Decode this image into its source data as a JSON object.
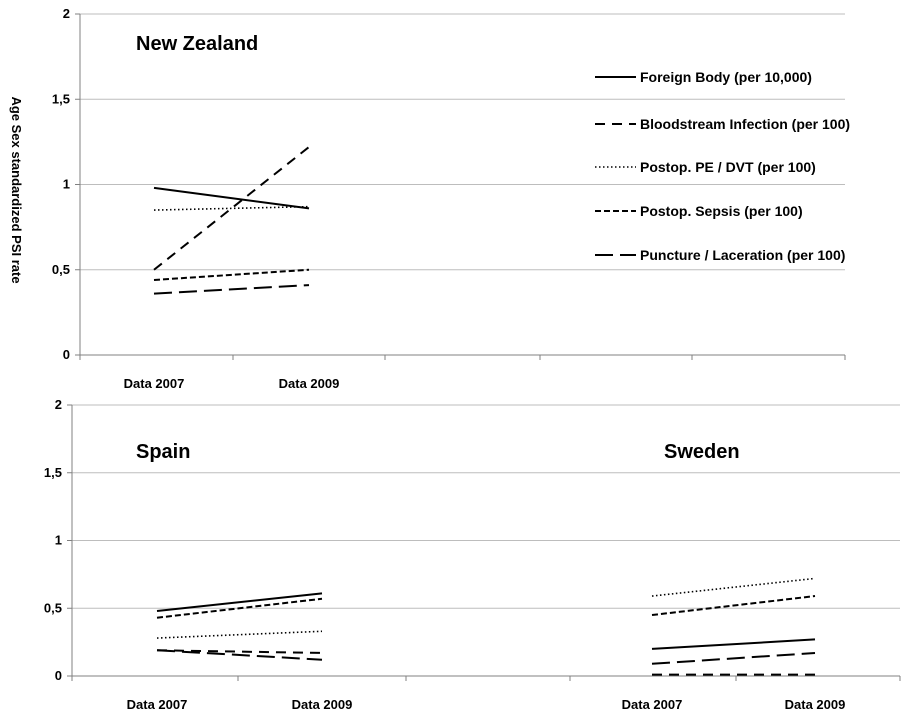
{
  "chart_data": {
    "type": "line",
    "ylabel": "Age Sex standardized PSI rate",
    "ylim": [
      0,
      2
    ],
    "yticks": [
      "0",
      "0,5",
      "1",
      "1,5",
      "2"
    ],
    "categories": [
      "Data 2007",
      "Data 2009"
    ],
    "grid": true,
    "legend_position": "right of New Zealand panel",
    "legend": [
      {
        "label": "Foreign Body (per 10,000)",
        "style": "solid"
      },
      {
        "label": "Bloodstream Infection (per 100)",
        "style": "dash"
      },
      {
        "label": "Postop. PE / DVT (per 100)",
        "style": "dot"
      },
      {
        "label": "Postop. Sepsis (per 100)",
        "style": "short-dash"
      },
      {
        "label": "Puncture / Laceration (per 100)",
        "style": "long-dash"
      }
    ],
    "panels": [
      {
        "title": "New Zealand",
        "series": [
          {
            "name": "Foreign Body (per 10,000)",
            "style": "solid",
            "values": [
              0.98,
              0.86
            ]
          },
          {
            "name": "Bloodstream Infection (per 100)",
            "style": "dash",
            "values": [
              0.5,
              1.22
            ]
          },
          {
            "name": "Postop. PE / DVT (per 100)",
            "style": "dot",
            "values": [
              0.85,
              0.87
            ]
          },
          {
            "name": "Postop. Sepsis (per 100)",
            "style": "short-dash",
            "values": [
              0.44,
              0.5
            ]
          },
          {
            "name": "Puncture / Laceration (per 100)",
            "style": "long-dash",
            "values": [
              0.36,
              0.41
            ]
          }
        ]
      },
      {
        "title": "Spain",
        "series": [
          {
            "name": "Foreign Body (per 10,000)",
            "style": "solid",
            "values": [
              0.48,
              0.61
            ]
          },
          {
            "name": "Bloodstream Infection (per 100)",
            "style": "dash",
            "values": [
              0.19,
              0.17
            ]
          },
          {
            "name": "Postop. PE / DVT (per 100)",
            "style": "dot",
            "values": [
              0.28,
              0.33
            ]
          },
          {
            "name": "Postop. Sepsis (per 100)",
            "style": "short-dash",
            "values": [
              0.43,
              0.57
            ]
          },
          {
            "name": "Puncture / Laceration (per 100)",
            "style": "long-dash",
            "values": [
              0.19,
              0.12
            ]
          }
        ]
      },
      {
        "title": "Sweden",
        "series": [
          {
            "name": "Foreign Body (per 10,000)",
            "style": "solid",
            "values": [
              0.2,
              0.27
            ]
          },
          {
            "name": "Bloodstream Infection (per 100)",
            "style": "dash",
            "values": [
              0.01,
              0.01
            ]
          },
          {
            "name": "Postop. PE / DVT (per 100)",
            "style": "dot",
            "values": [
              0.59,
              0.72
            ]
          },
          {
            "name": "Postop. Sepsis (per 100)",
            "style": "short-dash",
            "values": [
              0.45,
              0.59
            ]
          },
          {
            "name": "Puncture / Laceration (per 100)",
            "style": "long-dash",
            "values": [
              0.09,
              0.17
            ]
          }
        ]
      }
    ]
  }
}
